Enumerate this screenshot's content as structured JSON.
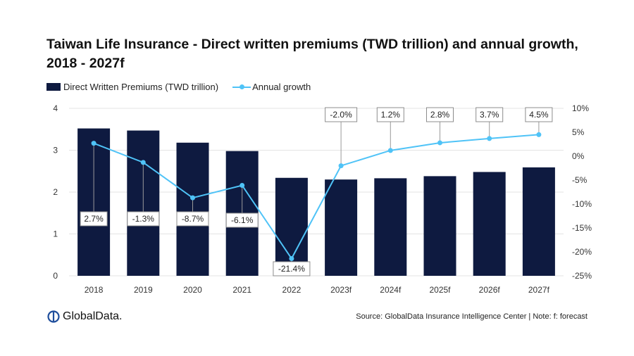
{
  "title": "Taiwan Life Insurance - Direct written premiums (TWD trillion) and annual growth, 2018 - 2027f",
  "legend": {
    "bar_label": "Direct Written Premiums (TWD trillion)",
    "line_label": "Annual growth"
  },
  "footer": {
    "logo_text": "GlobalData.",
    "source": "Source: GlobalData Insurance Intelligence Center | Note: f: forecast"
  },
  "colors": {
    "bar": "#0e1a40",
    "line": "#4fc3f7",
    "grid": "#e3e3e3",
    "leader": "#9a9a9a"
  },
  "chart_data": {
    "type": "bar+line",
    "title": "Taiwan Life Insurance - Direct written premiums (TWD trillion) and annual growth, 2018 - 2027f",
    "categories": [
      "2018",
      "2019",
      "2020",
      "2021",
      "2022",
      "2023f",
      "2024f",
      "2025f",
      "2026f",
      "2027f"
    ],
    "series": [
      {
        "name": "Direct Written Premiums (TWD trillion)",
        "type": "bar",
        "axis": "left",
        "values": [
          3.52,
          3.47,
          3.18,
          2.98,
          2.34,
          2.3,
          2.33,
          2.38,
          2.48,
          2.59
        ]
      },
      {
        "name": "Annual growth",
        "type": "line",
        "axis": "right",
        "values": [
          2.7,
          -1.3,
          -8.7,
          -6.1,
          -21.4,
          -2.0,
          1.2,
          2.8,
          3.7,
          4.5
        ],
        "labels": [
          "2.7%",
          "-1.3%",
          "-8.7%",
          "-6.1%",
          "-21.4%",
          "-2.0%",
          "1.2%",
          "2.8%",
          "3.7%",
          "4.5%"
        ]
      }
    ],
    "y_left": {
      "min": 0,
      "max": 4,
      "ticks": [
        0,
        1,
        2,
        3,
        4
      ],
      "tick_labels": [
        "0",
        "1",
        "2",
        "3",
        "4"
      ]
    },
    "y_right": {
      "min": -25,
      "max": 10,
      "ticks": [
        -25,
        -20,
        -15,
        -10,
        -5,
        0,
        5,
        10
      ],
      "tick_labels": [
        "-25%",
        "-20%",
        "-15%",
        "-10%",
        "-5%",
        "0%",
        "5%",
        "10%"
      ]
    },
    "grid": true,
    "legend_position": "top-left"
  }
}
